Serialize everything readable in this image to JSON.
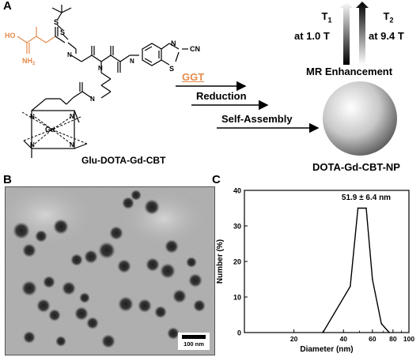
{
  "panels": {
    "a": "A",
    "b": "B",
    "c": "C"
  },
  "scheme": {
    "compound_label": "Glu-DOTA-Gd-CBT",
    "product_label": "DOTA-Gd-CBT-NP",
    "step_ggt": "GGT",
    "step_reduction": "Reduction",
    "step_self_assembly": "Self-Assembly",
    "t1_symbol": "T",
    "t1_sub": "1",
    "t1_field": "at 1.0 T",
    "t2_symbol": "T",
    "t2_sub": "2",
    "t2_field": "at 9.4 T",
    "mr_label": "MR Enhancement",
    "atoms": {
      "ho": "HO",
      "nh2": "NH",
      "nh2_sub": "2",
      "gd": "Gd",
      "cn": "CN",
      "n": "N",
      "s": "S",
      "h": "H"
    },
    "colors": {
      "glu": "#e58a4a",
      "ggt": "#e58a4a"
    }
  },
  "tem": {
    "scale_label": "100 nm"
  },
  "chart_data": {
    "type": "line",
    "xlabel": "Diameter (nm)",
    "ylabel": "Number (%)",
    "x_scale": "log",
    "xlim": [
      10,
      100
    ],
    "ylim": [
      0,
      40
    ],
    "x_ticks": [
      20,
      40,
      60,
      80,
      100
    ],
    "y_ticks": [
      0,
      10,
      20,
      30,
      40
    ],
    "annotation": "51.9 ± 6.4 nm",
    "series": [
      {
        "x": [
          30,
          44,
          49,
          55,
          60,
          68,
          76
        ],
        "y": [
          0,
          13,
          35,
          35,
          15,
          2.5,
          0
        ]
      }
    ]
  }
}
